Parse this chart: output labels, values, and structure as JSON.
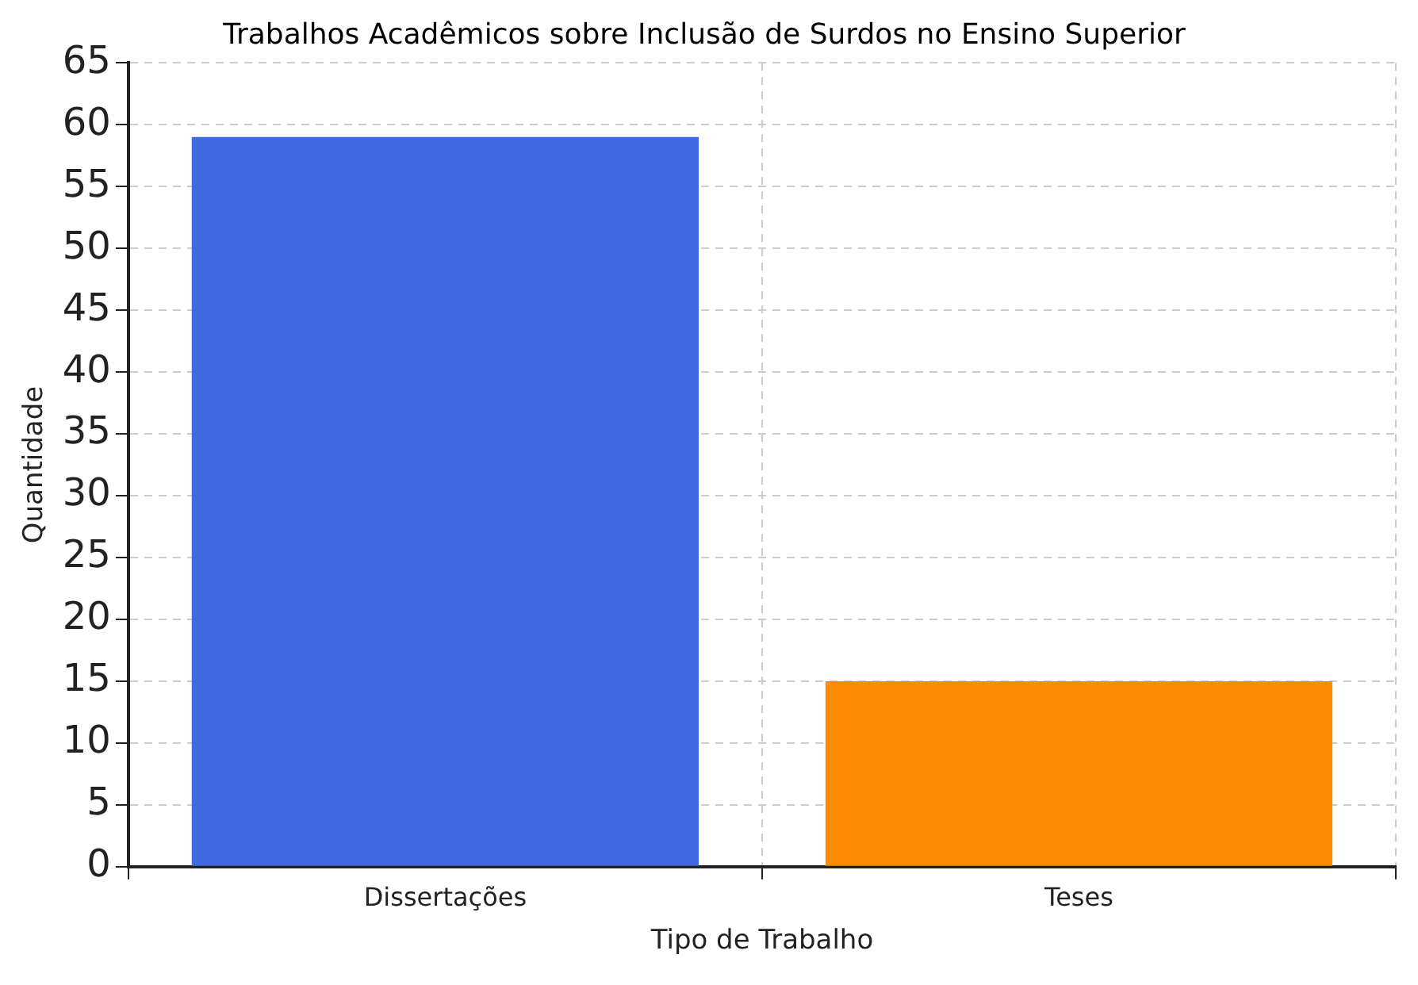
{
  "chart_data": {
    "type": "bar",
    "title": "Trabalhos Acadêmicos sobre Inclusão de Surdos no Ensino Superior",
    "xlabel": "Tipo de Trabalho",
    "ylabel": "Quantidade",
    "categories": [
      "Dissertações",
      "Teses"
    ],
    "values": [
      59,
      15
    ],
    "colors": [
      "#4169e1",
      "#ff8c00"
    ],
    "ylim": [
      0,
      65
    ],
    "yticks": [
      0,
      5,
      10,
      15,
      20,
      25,
      30,
      35,
      40,
      45,
      50,
      55,
      60,
      65
    ],
    "grid": true
  }
}
